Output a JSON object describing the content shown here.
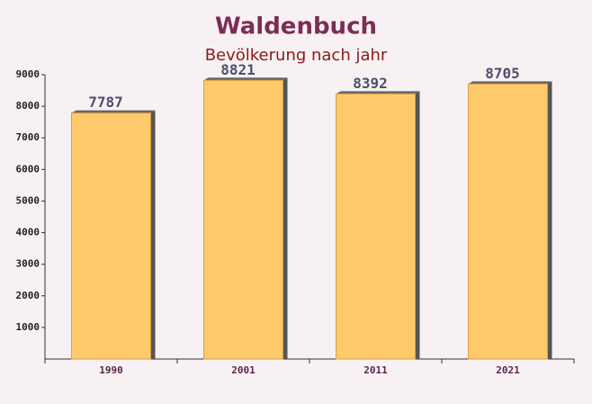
{
  "chart_data": {
    "type": "bar",
    "title": "Waldenbuch",
    "subtitle": "Bevölkerung nach jahr",
    "categories": [
      "1990",
      "2001",
      "2011",
      "2021"
    ],
    "values": [
      7787,
      8821,
      8392,
      8705
    ],
    "color": "#fec96a",
    "ylim": [
      0,
      9000
    ],
    "yticks": [
      1000,
      2000,
      3000,
      4000,
      5000,
      6000,
      7000,
      8000,
      9000
    ]
  }
}
